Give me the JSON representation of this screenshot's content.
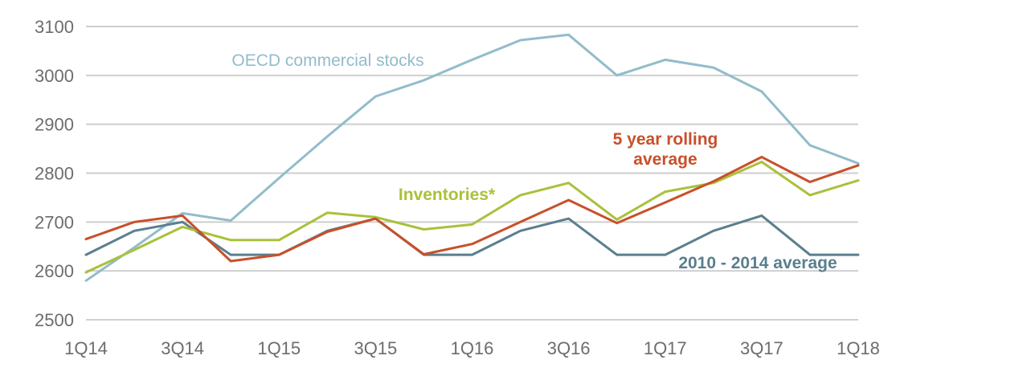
{
  "chart_data": {
    "type": "line",
    "categories": [
      "1Q14",
      "2Q14",
      "3Q14",
      "4Q14",
      "1Q15",
      "2Q15",
      "3Q15",
      "4Q15",
      "1Q16",
      "2Q16",
      "3Q16",
      "4Q16",
      "1Q17",
      "2Q17",
      "3Q17",
      "4Q17",
      "1Q18"
    ],
    "x_tick_labels": [
      "1Q14",
      "3Q14",
      "1Q15",
      "3Q15",
      "1Q16",
      "3Q16",
      "1Q17",
      "3Q17",
      "1Q18"
    ],
    "y_ticks": [
      2500,
      2600,
      2700,
      2800,
      2900,
      3000,
      3100
    ],
    "ylim": [
      2500,
      3100
    ],
    "grid": true,
    "series": [
      {
        "name": "OECD commercial stocks",
        "color": "#92BCCB",
        "values": [
          2580,
          2648,
          2718,
          2703,
          2790,
          2875,
          2957,
          2990,
          3032,
          3072,
          3083,
          3000,
          3032,
          3016,
          2967,
          2857,
          2820
        ]
      },
      {
        "name": "5 year rolling\naverage",
        "color": "#C8502A",
        "values": [
          2665,
          2700,
          2713,
          2620,
          2633,
          2680,
          2707,
          2634,
          2655,
          2700,
          2745,
          2698,
          2740,
          2783,
          2833,
          2782,
          2816
        ]
      },
      {
        "name": "Inventories*",
        "color": "#A9C13B",
        "values": [
          2597,
          2643,
          2690,
          2663,
          2663,
          2719,
          2710,
          2685,
          2695,
          2755,
          2780,
          2705,
          2762,
          2780,
          2823,
          2755,
          2785
        ]
      },
      {
        "name": "2010 - 2014 average",
        "color": "#5A7F8E",
        "values": [
          2633,
          2682,
          2700,
          2633,
          2633,
          2682,
          2707,
          2633,
          2633,
          2682,
          2707,
          2633,
          2633,
          2682,
          2713,
          2633,
          2633
        ]
      }
    ]
  }
}
